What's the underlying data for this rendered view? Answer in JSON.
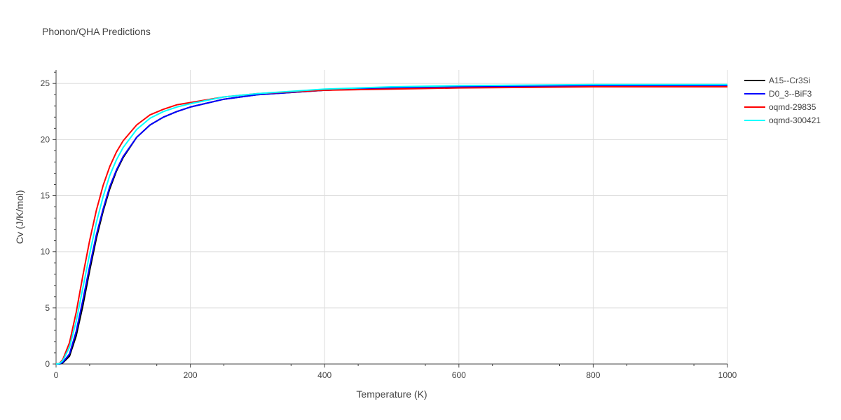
{
  "chart_data": {
    "type": "line",
    "title": "Phonon/QHA Predictions",
    "xlabel": "Temperature (K)",
    "ylabel": "Cv (J/K/mol)",
    "xlim": [
      0,
      1000
    ],
    "ylim": [
      0,
      26.2
    ],
    "xticks": [
      0,
      200,
      400,
      600,
      800,
      1000
    ],
    "yticks": [
      0,
      5,
      10,
      15,
      20,
      25
    ],
    "grid": true,
    "legend": "right",
    "series": [
      {
        "name": "A15--Cr3Si",
        "color": "#000000",
        "x": [
          0,
          5,
          10,
          20,
          30,
          40,
          50,
          60,
          70,
          80,
          90,
          100,
          120,
          140,
          160,
          180,
          200,
          250,
          300,
          400,
          500,
          600,
          800,
          1000
        ],
        "y": [
          0,
          0,
          0.1,
          0.7,
          2.5,
          5.2,
          8.3,
          11.2,
          13.6,
          15.6,
          17.2,
          18.4,
          20.2,
          21.3,
          22.0,
          22.5,
          22.9,
          23.6,
          24.0,
          24.4,
          24.6,
          24.7,
          24.8,
          24.8
        ]
      },
      {
        "name": "D0_3--BiF3",
        "color": "#0000ff",
        "x": [
          0,
          5,
          10,
          20,
          30,
          40,
          50,
          60,
          70,
          80,
          90,
          100,
          120,
          140,
          160,
          180,
          200,
          250,
          300,
          400,
          500,
          600,
          800,
          1000
        ],
        "y": [
          0,
          0,
          0.15,
          0.9,
          2.9,
          5.7,
          8.7,
          11.5,
          13.8,
          15.8,
          17.3,
          18.5,
          20.2,
          21.3,
          22.0,
          22.5,
          22.9,
          23.6,
          24.0,
          24.4,
          24.6,
          24.7,
          24.8,
          24.8
        ]
      },
      {
        "name": "oqmd-29835",
        "color": "#ff0000",
        "x": [
          0,
          5,
          10,
          20,
          30,
          40,
          50,
          60,
          70,
          80,
          90,
          100,
          120,
          140,
          160,
          180,
          200,
          250,
          300,
          400,
          500,
          600,
          800,
          1000
        ],
        "y": [
          0,
          0.05,
          0.4,
          1.9,
          4.6,
          7.9,
          11.0,
          13.7,
          15.9,
          17.6,
          18.9,
          19.9,
          21.3,
          22.2,
          22.7,
          23.1,
          23.3,
          23.8,
          24.1,
          24.4,
          24.5,
          24.6,
          24.7,
          24.7
        ]
      },
      {
        "name": "oqmd-300421",
        "color": "#00ffff",
        "x": [
          0,
          5,
          10,
          20,
          30,
          40,
          50,
          60,
          70,
          80,
          90,
          100,
          120,
          140,
          160,
          180,
          200,
          250,
          300,
          400,
          500,
          600,
          800,
          1000
        ],
        "y": [
          0,
          0.03,
          0.3,
          1.5,
          3.8,
          6.8,
          9.8,
          12.6,
          14.9,
          16.8,
          18.2,
          19.3,
          20.9,
          21.9,
          22.5,
          22.9,
          23.2,
          23.8,
          24.1,
          24.5,
          24.7,
          24.8,
          24.9,
          24.9
        ]
      }
    ]
  }
}
